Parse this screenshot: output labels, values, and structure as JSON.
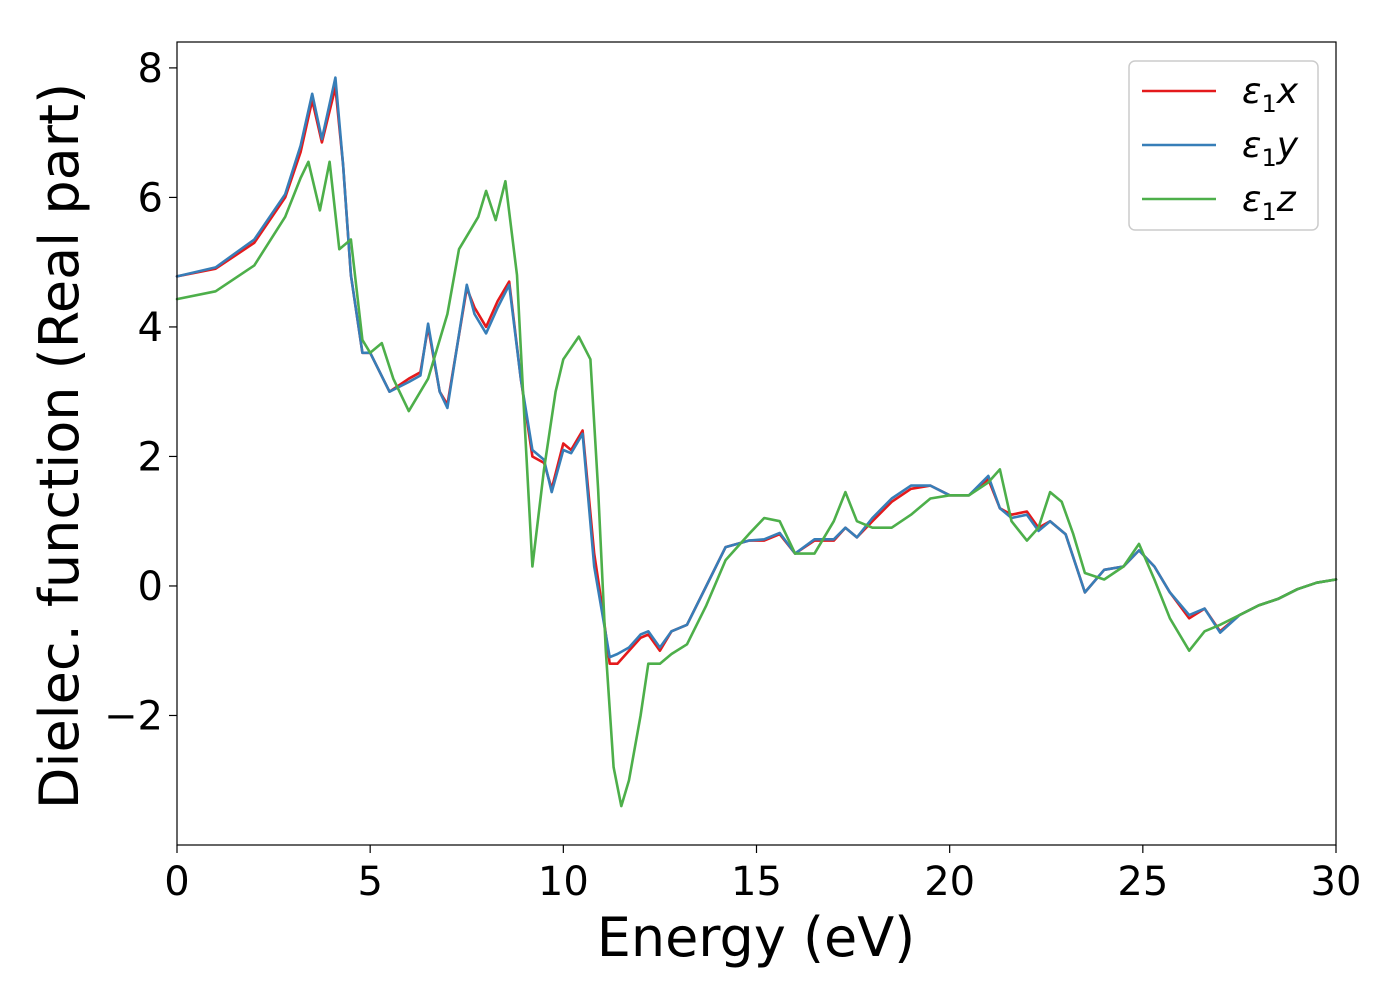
{
  "chart_data": {
    "type": "line",
    "xlabel": "Energy (eV)",
    "ylabel": "Dielec. function (Real part)",
    "xlim": [
      0,
      30
    ],
    "ylim": [
      -4.0,
      8.4
    ],
    "xticks": [
      0,
      5,
      10,
      15,
      20,
      25,
      30
    ],
    "xtick_labels": [
      "0",
      "5",
      "10",
      "15",
      "20",
      "25",
      "30"
    ],
    "yticks": [
      -2,
      0,
      2,
      4,
      6,
      8
    ],
    "ytick_labels": [
      "−2",
      "0",
      "2",
      "4",
      "6",
      "8"
    ],
    "grid": false,
    "legend_position": "top-right",
    "series": [
      {
        "name": "ε1x",
        "name_main": "ε",
        "name_sub": "1",
        "name_tail": "x",
        "color": "#e41a1c",
        "x": [
          0,
          1,
          2,
          2.8,
          3.2,
          3.5,
          3.75,
          4.1,
          4.3,
          4.5,
          4.8,
          5.0,
          5.5,
          6.0,
          6.3,
          6.5,
          6.8,
          7.0,
          7.5,
          7.7,
          8.0,
          8.3,
          8.6,
          8.9,
          9.2,
          9.5,
          9.7,
          10.0,
          10.2,
          10.5,
          10.8,
          11.0,
          11.2,
          11.4,
          11.7,
          12.0,
          12.2,
          12.5,
          12.8,
          13.2,
          13.7,
          14.2,
          14.8,
          15.2,
          15.6,
          16.0,
          16.5,
          17.0,
          17.3,
          17.6,
          18.0,
          18.5,
          19.0,
          19.5,
          20.0,
          20.5,
          21.0,
          21.3,
          21.6,
          22.0,
          22.3,
          22.6,
          23.0,
          23.5,
          24.0,
          24.5,
          24.9,
          25.3,
          25.7,
          26.2,
          26.6,
          27.0,
          27.5,
          28.0,
          28.5,
          29.0,
          29.5,
          30.0
        ],
        "y": [
          4.78,
          4.9,
          5.3,
          6.0,
          6.7,
          7.5,
          6.85,
          7.7,
          6.5,
          4.8,
          3.6,
          3.6,
          3.0,
          3.2,
          3.3,
          4.0,
          3.0,
          2.8,
          4.6,
          4.3,
          4.0,
          4.4,
          4.7,
          3.2,
          2.0,
          1.9,
          1.5,
          2.2,
          2.1,
          2.4,
          0.5,
          -0.3,
          -1.2,
          -1.2,
          -1.0,
          -0.8,
          -0.75,
          -1.0,
          -0.7,
          -0.6,
          0.0,
          0.6,
          0.7,
          0.7,
          0.8,
          0.5,
          0.7,
          0.7,
          0.9,
          0.75,
          1.0,
          1.3,
          1.5,
          1.55,
          1.4,
          1.4,
          1.65,
          1.2,
          1.1,
          1.15,
          0.9,
          1.0,
          0.8,
          -0.1,
          0.25,
          0.3,
          0.55,
          0.3,
          -0.1,
          -0.5,
          -0.35,
          -0.7,
          -0.45,
          -0.3,
          -0.2,
          -0.05,
          0.05,
          0.1
        ]
      },
      {
        "name": "ε1y",
        "name_main": "ε",
        "name_sub": "1",
        "name_tail": "y",
        "color": "#377eb8",
        "x": [
          0,
          1,
          2,
          2.8,
          3.2,
          3.5,
          3.75,
          4.1,
          4.3,
          4.5,
          4.8,
          5.0,
          5.5,
          6.0,
          6.3,
          6.5,
          6.8,
          7.0,
          7.5,
          7.7,
          8.0,
          8.3,
          8.6,
          8.9,
          9.2,
          9.5,
          9.7,
          10.0,
          10.2,
          10.5,
          10.8,
          11.0,
          11.2,
          11.4,
          11.7,
          12.0,
          12.2,
          12.5,
          12.8,
          13.2,
          13.7,
          14.2,
          14.8,
          15.2,
          15.6,
          16.0,
          16.5,
          17.0,
          17.3,
          17.6,
          18.0,
          18.5,
          19.0,
          19.5,
          20.0,
          20.5,
          21.0,
          21.3,
          21.6,
          22.0,
          22.3,
          22.6,
          23.0,
          23.5,
          24.0,
          24.5,
          24.9,
          25.3,
          25.7,
          26.2,
          26.6,
          27.0,
          27.5,
          28.0,
          28.5,
          29.0,
          29.5,
          30.0
        ],
        "y": [
          4.78,
          4.92,
          5.35,
          6.05,
          6.8,
          7.6,
          6.9,
          7.85,
          6.5,
          4.8,
          3.6,
          3.6,
          3.0,
          3.15,
          3.25,
          4.05,
          3.0,
          2.75,
          4.65,
          4.2,
          3.9,
          4.3,
          4.65,
          3.2,
          2.1,
          1.95,
          1.45,
          2.1,
          2.05,
          2.35,
          0.3,
          -0.4,
          -1.1,
          -1.05,
          -0.95,
          -0.75,
          -0.7,
          -0.95,
          -0.7,
          -0.6,
          0.0,
          0.6,
          0.7,
          0.72,
          0.82,
          0.5,
          0.72,
          0.72,
          0.9,
          0.75,
          1.05,
          1.35,
          1.55,
          1.55,
          1.4,
          1.4,
          1.7,
          1.2,
          1.05,
          1.1,
          0.85,
          1.0,
          0.8,
          -0.1,
          0.25,
          0.3,
          0.55,
          0.3,
          -0.1,
          -0.45,
          -0.35,
          -0.72,
          -0.45,
          -0.3,
          -0.2,
          -0.05,
          0.05,
          0.1
        ]
      },
      {
        "name": "ε1z",
        "name_main": "ε",
        "name_sub": "1",
        "name_tail": "z",
        "color": "#4daf4a",
        "x": [
          0,
          1,
          2,
          2.8,
          3.2,
          3.4,
          3.7,
          3.95,
          4.2,
          4.5,
          4.8,
          5.0,
          5.3,
          5.6,
          6.0,
          6.5,
          7.0,
          7.3,
          7.6,
          7.8,
          8.0,
          8.25,
          8.5,
          8.8,
          9.0,
          9.2,
          9.5,
          9.8,
          10.0,
          10.4,
          10.7,
          10.9,
          11.1,
          11.3,
          11.5,
          11.7,
          12.0,
          12.2,
          12.5,
          12.8,
          13.2,
          13.7,
          14.2,
          14.8,
          15.2,
          15.6,
          16.0,
          16.5,
          17.0,
          17.3,
          17.6,
          18.0,
          18.5,
          19.0,
          19.5,
          20.0,
          20.5,
          21.0,
          21.3,
          21.6,
          22.0,
          22.3,
          22.6,
          22.9,
          23.2,
          23.5,
          24.0,
          24.5,
          24.9,
          25.3,
          25.7,
          26.2,
          26.6,
          27.0,
          27.5,
          28.0,
          28.5,
          29.0,
          29.5,
          30.0
        ],
        "y": [
          4.43,
          4.55,
          4.95,
          5.7,
          6.3,
          6.55,
          5.8,
          6.55,
          5.2,
          5.35,
          3.8,
          3.6,
          3.75,
          3.2,
          2.7,
          3.2,
          4.2,
          5.2,
          5.5,
          5.7,
          6.1,
          5.65,
          6.25,
          4.8,
          2.5,
          0.3,
          1.8,
          3.0,
          3.5,
          3.85,
          3.5,
          1.5,
          -1.0,
          -2.8,
          -3.4,
          -3.0,
          -2.0,
          -1.2,
          -1.2,
          -1.05,
          -0.9,
          -0.3,
          0.4,
          0.8,
          1.05,
          1.0,
          0.5,
          0.5,
          1.0,
          1.45,
          1.0,
          0.9,
          0.9,
          1.1,
          1.35,
          1.4,
          1.4,
          1.6,
          1.8,
          1.0,
          0.7,
          0.9,
          1.45,
          1.3,
          0.8,
          0.2,
          0.1,
          0.3,
          0.65,
          0.1,
          -0.5,
          -1.0,
          -0.7,
          -0.6,
          -0.45,
          -0.3,
          -0.2,
          -0.05,
          0.05,
          0.1
        ]
      }
    ]
  }
}
